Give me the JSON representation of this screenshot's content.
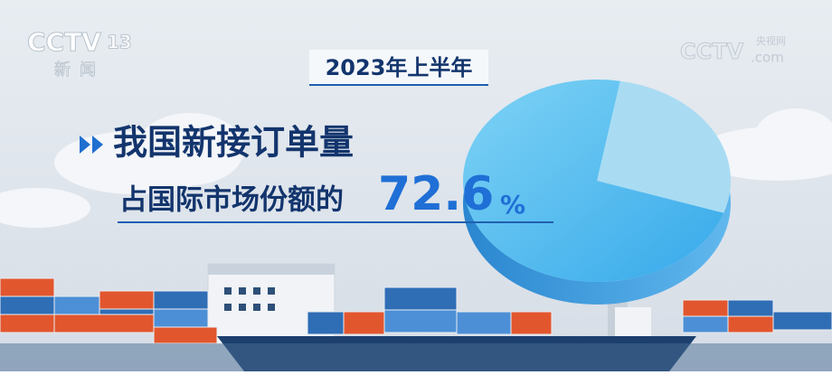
{
  "logo": {
    "channel": "CCTV",
    "number": "13",
    "name": "新闻"
  },
  "watermark": {
    "brand": "CCTV",
    "site_cn": "央视网",
    "site": ".com"
  },
  "period": "2023年上半年",
  "headline": "我国新接订单量",
  "subline": "占国际市场份额的",
  "value": 72.6,
  "unit": "%"
}
